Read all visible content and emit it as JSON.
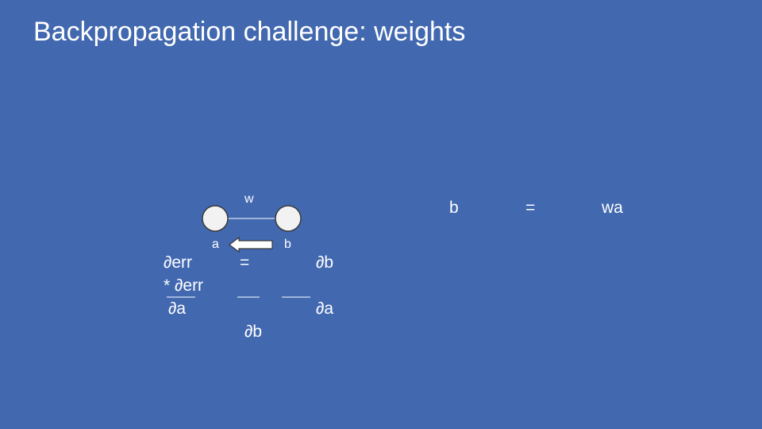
{
  "slide": {
    "title": "Backpropagation challenge: weights"
  },
  "diagram": {
    "weight_label": "w",
    "node_a_label": "a",
    "node_b_label": "b",
    "arrow_direction": "right-to-left",
    "colors": {
      "background": "#4268b0",
      "node_fill": "#f2f2f2",
      "node_stroke": "#3a3a3a",
      "arrow_fill": "#ffffff"
    }
  },
  "equation": {
    "lhs_numerator": "∂err",
    "equals": "=",
    "rhs_numerator_1": "∂b",
    "times_numerator": "* ∂err",
    "lhs_denominator": "∂a",
    "rhs_denominator_1": "∂a",
    "rhs_denominator_2": "∂b"
  },
  "relation": {
    "lhs": "b",
    "equals": "=",
    "rhs": "wa"
  }
}
